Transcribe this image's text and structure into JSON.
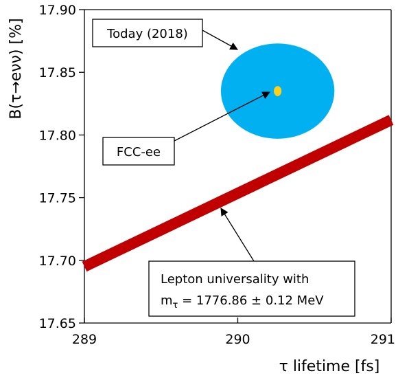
{
  "chart_data": {
    "type": "line",
    "xlabel": "τ lifetime [fs]",
    "ylabel": "B(τ→eνν) [%]",
    "xlim": [
      289,
      291
    ],
    "ylim": [
      17.65,
      17.9
    ],
    "xticks": [
      "289",
      "290",
      "291"
    ],
    "yticks": [
      "17.65",
      "17.70",
      "17.75",
      "17.80",
      "17.85",
      "17.90"
    ],
    "grid": false,
    "colors": {
      "band": "#c00000",
      "ellipse": "#00b0f0",
      "point": "#ffd01a",
      "axis": "#000000"
    },
    "band": {
      "x": [
        289,
        291
      ],
      "y": [
        17.695,
        17.812
      ]
    },
    "today_ellipse": {
      "center": [
        290.26,
        17.835
      ],
      "x_halfwidth": 0.37,
      "y_halfwidth": 0.038
    },
    "fcc_point": {
      "center": [
        290.26,
        17.835
      ],
      "x_halfwidth": 0.025,
      "y_halfwidth": 0.004
    },
    "annotations": {
      "today": {
        "text": "Today (2018)"
      },
      "fcc": {
        "text": "FCC-ee"
      },
      "lepton": {
        "line1": "Lepton universality with",
        "line2_main": "m",
        "line2_sub": "τ",
        "line2_rest": " = 1776.86 ± 0.12 MeV"
      }
    }
  }
}
